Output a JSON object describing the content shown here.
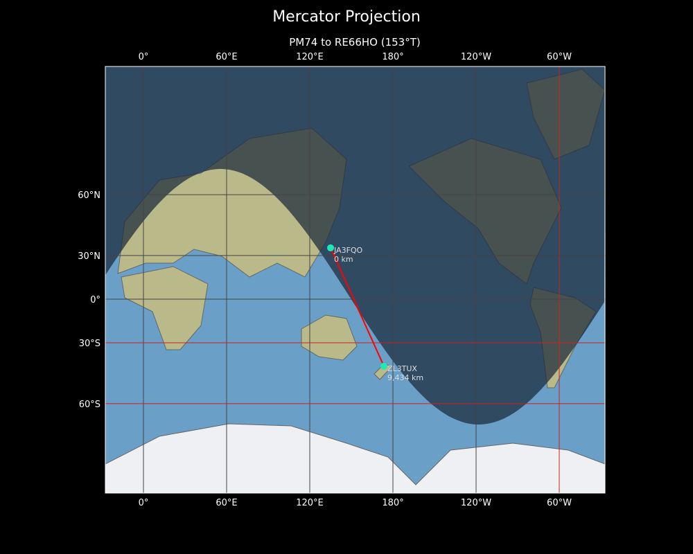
{
  "title": "Mercator Projection",
  "subtitle": "PM74 to RE66HO (153°T)",
  "x_ticks": [
    {
      "lon": 0,
      "label": "0°"
    },
    {
      "lon": 60,
      "label": "60°E"
    },
    {
      "lon": 120,
      "label": "120°E"
    },
    {
      "lon": 180,
      "label": "180°"
    },
    {
      "lon": 240,
      "label": "120°W"
    },
    {
      "lon": 300,
      "label": "60°W"
    }
  ],
  "y_ticks": [
    {
      "lat": 60,
      "label": "60°N"
    },
    {
      "lat": 30,
      "label": "30°N"
    },
    {
      "lat": 0,
      "label": "0°"
    },
    {
      "lat": -30,
      "label": "30°S"
    },
    {
      "lat": -60,
      "label": "60°S"
    }
  ],
  "highlighted_grid": {
    "lats": [
      -30,
      -60
    ],
    "lons": [
      300
    ],
    "color": "#cc2222"
  },
  "path_color": "#ff0000",
  "station_color": "#1de9b6",
  "stations": [
    {
      "call": "JA3FQO",
      "distance": "0 km",
      "lat": 34.7,
      "lon": 135
    },
    {
      "call": "ZL3TUX",
      "distance": "9,434 km",
      "lat": -43.5,
      "lon": 173.5
    }
  ]
}
